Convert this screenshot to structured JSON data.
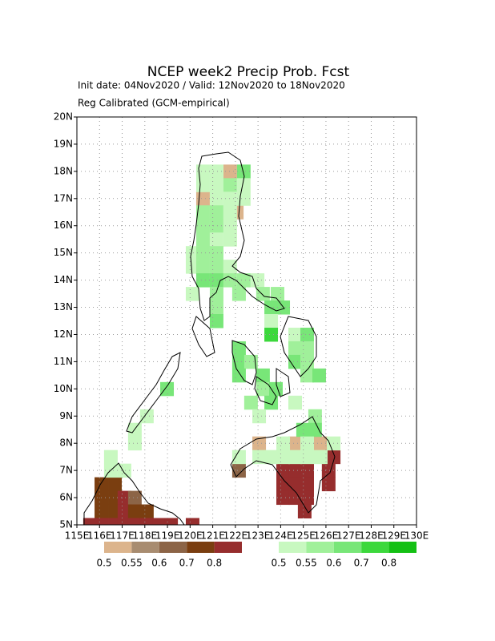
{
  "chart_data": {
    "type": "gridmap",
    "title": "NCEP week2 Precip Prob. Fcst",
    "subtitle": "Init date: 04Nov2020 / Valid: 12Nov2020 to 18Nov2020",
    "note": "Reg Calibrated (GCM-empirical)",
    "xlim": [
      115,
      130
    ],
    "ylim": [
      5,
      20
    ],
    "grid": true,
    "xticks": [
      {
        "value": 115,
        "label": "115E"
      },
      {
        "value": 116,
        "label": "116E"
      },
      {
        "value": 117,
        "label": "117E"
      },
      {
        "value": 118,
        "label": "118E"
      },
      {
        "value": 119,
        "label": "119E"
      },
      {
        "value": 120,
        "label": "120E"
      },
      {
        "value": 121,
        "label": "121E"
      },
      {
        "value": 122,
        "label": "122E"
      },
      {
        "value": 123,
        "label": "123E"
      },
      {
        "value": 124,
        "label": "124E"
      },
      {
        "value": 125,
        "label": "125E"
      },
      {
        "value": 126,
        "label": "126E"
      },
      {
        "value": 127,
        "label": "127E"
      },
      {
        "value": 128,
        "label": "128E"
      },
      {
        "value": 129,
        "label": "129E"
      },
      {
        "value": 130,
        "label": "130E"
      }
    ],
    "yticks": [
      {
        "value": 5,
        "label": "5N"
      },
      {
        "value": 6,
        "label": "6N"
      },
      {
        "value": 7,
        "label": "7N"
      },
      {
        "value": 8,
        "label": "8N"
      },
      {
        "value": 9,
        "label": "9N"
      },
      {
        "value": 10,
        "label": "10N"
      },
      {
        "value": 11,
        "label": "11N"
      },
      {
        "value": 12,
        "label": "12N"
      },
      {
        "value": 13,
        "label": "13N"
      },
      {
        "value": 14,
        "label": "14N"
      },
      {
        "value": 15,
        "label": "15N"
      },
      {
        "value": 16,
        "label": "16N"
      },
      {
        "value": 17,
        "label": "17N"
      },
      {
        "value": 18,
        "label": "18N"
      },
      {
        "value": 19,
        "label": "19N"
      },
      {
        "value": 20,
        "label": "20N"
      }
    ],
    "below": {
      "colors": [
        "#dcb48c",
        "#a88c70",
        "#8c6446",
        "#7a3e10",
        "#962d2d"
      ],
      "levels": [
        0.5,
        0.55,
        0.6,
        0.7,
        0.8
      ],
      "cells": [
        [
          121.47,
          17.75,
          0
        ],
        [
          120.27,
          16.75,
          0
        ],
        [
          121.76,
          16.25,
          0
        ],
        [
          122.75,
          7.75,
          0
        ],
        [
          124.34,
          7.75,
          0
        ],
        [
          125.47,
          7.75,
          0
        ],
        [
          126.04,
          7.25,
          4
        ],
        [
          121.86,
          6.75,
          2
        ],
        [
          123.81,
          6.75,
          4
        ],
        [
          124.34,
          6.75,
          4
        ],
        [
          124.87,
          6.75,
          4
        ],
        [
          125.82,
          6.75,
          4
        ],
        [
          115.78,
          6.25,
          3
        ],
        [
          116.38,
          6.25,
          3
        ],
        [
          123.81,
          6.25,
          4
        ],
        [
          124.34,
          6.25,
          4
        ],
        [
          124.87,
          6.25,
          4
        ],
        [
          125.82,
          6.25,
          4
        ],
        [
          115.78,
          5.75,
          3
        ],
        [
          116.38,
          5.75,
          3
        ],
        [
          116.8,
          5.75,
          4
        ],
        [
          117.26,
          5.75,
          2
        ],
        [
          123.81,
          5.75,
          4
        ],
        [
          124.34,
          5.75,
          4
        ],
        [
          124.87,
          5.75,
          4
        ],
        [
          115.78,
          5.25,
          3
        ],
        [
          116.38,
          5.25,
          3
        ],
        [
          116.8,
          5.25,
          4
        ],
        [
          117.26,
          5.25,
          3
        ],
        [
          117.79,
          5.25,
          3
        ],
        [
          124.76,
          5.25,
          4
        ],
        [
          115.28,
          4.75,
          4
        ],
        [
          115.78,
          4.75,
          4
        ],
        [
          116.38,
          4.75,
          4
        ],
        [
          116.8,
          4.75,
          4
        ],
        [
          117.26,
          4.75,
          4
        ],
        [
          117.79,
          4.75,
          4
        ],
        [
          118.33,
          4.75,
          4
        ],
        [
          118.86,
          4.75,
          4
        ],
        [
          119.81,
          4.75,
          4
        ]
      ]
    },
    "above": {
      "colors": [
        "#c8f8c0",
        "#a0f09a",
        "#78e678",
        "#3cd83c",
        "#14c014"
      ],
      "levels": [
        0.5,
        0.55,
        0.6,
        0.7,
        0.8
      ],
      "cells": [
        [
          120.27,
          17.75,
          0
        ],
        [
          120.87,
          17.75,
          0
        ],
        [
          122.07,
          17.75,
          2
        ],
        [
          120.27,
          17.25,
          0
        ],
        [
          120.87,
          17.25,
          0
        ],
        [
          121.47,
          17.25,
          1
        ],
        [
          122.07,
          17.25,
          0
        ],
        [
          120.87,
          16.75,
          0
        ],
        [
          121.47,
          16.75,
          0
        ],
        [
          122.07,
          16.75,
          0
        ],
        [
          120.27,
          16.25,
          1
        ],
        [
          120.87,
          16.25,
          1
        ],
        [
          121.47,
          16.25,
          0
        ],
        [
          120.27,
          15.75,
          1
        ],
        [
          120.87,
          15.75,
          1
        ],
        [
          121.47,
          15.75,
          0
        ],
        [
          120.27,
          15.25,
          1
        ],
        [
          120.87,
          15.25,
          0
        ],
        [
          121.47,
          15.25,
          0
        ],
        [
          119.81,
          14.75,
          0
        ],
        [
          120.27,
          14.75,
          1
        ],
        [
          120.87,
          14.75,
          1
        ],
        [
          119.81,
          14.25,
          0
        ],
        [
          120.27,
          14.25,
          1
        ],
        [
          120.87,
          14.25,
          1
        ],
        [
          121.47,
          14.25,
          0
        ],
        [
          120.27,
          13.75,
          2
        ],
        [
          120.87,
          13.75,
          2
        ],
        [
          121.47,
          13.75,
          1
        ],
        [
          122.07,
          13.75,
          1
        ],
        [
          122.68,
          13.75,
          0
        ],
        [
          119.81,
          13.25,
          0
        ],
        [
          120.87,
          13.25,
          1
        ],
        [
          121.86,
          13.25,
          1
        ],
        [
          122.92,
          13.25,
          1
        ],
        [
          123.56,
          13.25,
          1
        ],
        [
          120.87,
          12.75,
          1
        ],
        [
          123.28,
          12.75,
          2
        ],
        [
          123.81,
          12.75,
          2
        ],
        [
          120.87,
          12.25,
          2
        ],
        [
          123.28,
          12.25,
          0
        ],
        [
          123.28,
          11.75,
          3
        ],
        [
          124.34,
          11.75,
          0
        ],
        [
          124.87,
          11.75,
          2
        ],
        [
          121.86,
          11.25,
          2
        ],
        [
          124.34,
          11.25,
          1
        ],
        [
          124.87,
          11.25,
          1
        ],
        [
          121.86,
          10.75,
          2
        ],
        [
          122.39,
          10.75,
          1
        ],
        [
          124.34,
          10.75,
          2
        ],
        [
          124.87,
          10.75,
          1
        ],
        [
          121.86,
          10.25,
          2
        ],
        [
          122.92,
          10.25,
          2
        ],
        [
          124.87,
          10.25,
          1
        ],
        [
          125.4,
          10.25,
          2
        ],
        [
          118.68,
          9.75,
          2
        ],
        [
          122.92,
          9.75,
          1
        ],
        [
          123.49,
          9.75,
          2
        ],
        [
          122.39,
          9.25,
          1
        ],
        [
          123.28,
          9.25,
          2
        ],
        [
          124.34,
          9.25,
          0
        ],
        [
          117.79,
          8.75,
          0
        ],
        [
          122.75,
          8.75,
          0
        ],
        [
          125.22,
          8.75,
          1
        ],
        [
          117.26,
          8.25,
          0
        ],
        [
          124.69,
          8.25,
          2
        ],
        [
          125.22,
          8.25,
          2
        ],
        [
          117.26,
          7.75,
          0
        ],
        [
          123.81,
          7.75,
          0
        ],
        [
          124.87,
          7.75,
          0
        ],
        [
          126.04,
          7.75,
          0
        ],
        [
          116.2,
          7.25,
          0
        ],
        [
          121.86,
          7.25,
          0
        ],
        [
          122.75,
          7.25,
          0
        ],
        [
          123.28,
          7.25,
          0
        ],
        [
          123.81,
          7.25,
          0
        ],
        [
          124.34,
          7.25,
          0
        ],
        [
          124.87,
          7.25,
          0
        ],
        [
          125.47,
          7.25,
          0
        ],
        [
          116.2,
          6.75,
          0
        ],
        [
          116.8,
          6.75,
          0
        ]
      ]
    }
  }
}
